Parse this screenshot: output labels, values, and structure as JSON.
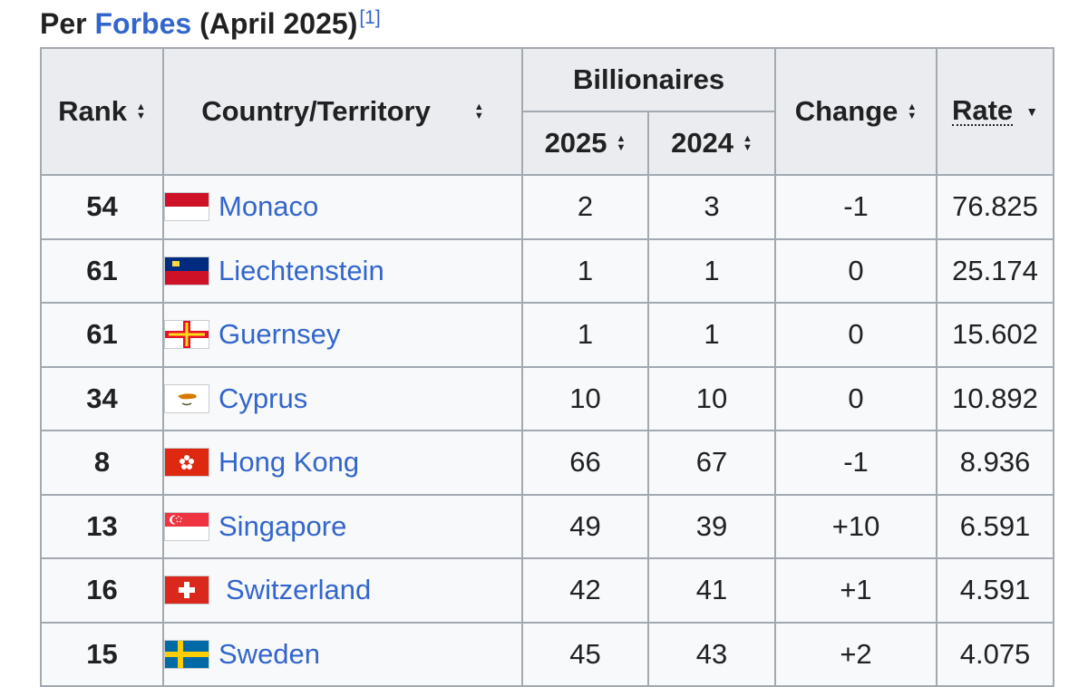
{
  "caption": {
    "prefix": "Per ",
    "source": "Forbes",
    "suffix": " (April 2025)",
    "ref": "[1]"
  },
  "headers": {
    "rank": "Rank",
    "country": "Country/Territory",
    "billionaires": "Billionaires",
    "y2025": "2025",
    "y2024": "2024",
    "change": "Change",
    "rate": "Rate"
  },
  "icons": {
    "sort_both": "sort-updown-icon",
    "sort_desc": "sort-down-icon"
  },
  "rows": [
    {
      "rank": "54",
      "country": "Monaco",
      "flag": "monaco-flag-icon",
      "b2025": "2",
      "b2024": "3",
      "change": "-1",
      "rate": "76.825"
    },
    {
      "rank": "61",
      "country": "Liechtenstein",
      "flag": "liechtenstein-flag-icon",
      "b2025": "1",
      "b2024": "1",
      "change": "0",
      "rate": "25.174"
    },
    {
      "rank": "61",
      "country": "Guernsey",
      "flag": "guernsey-flag-icon",
      "b2025": "1",
      "b2024": "1",
      "change": "0",
      "rate": "15.602"
    },
    {
      "rank": "34",
      "country": "Cyprus",
      "flag": "cyprus-flag-icon",
      "b2025": "10",
      "b2024": "10",
      "change": "0",
      "rate": "10.892"
    },
    {
      "rank": "8",
      "country": "Hong Kong",
      "flag": "hong-kong-flag-icon",
      "b2025": "66",
      "b2024": "67",
      "change": "-1",
      "rate": "8.936"
    },
    {
      "rank": "13",
      "country": "Singapore",
      "flag": "singapore-flag-icon",
      "b2025": "49",
      "b2024": "39",
      "change": "+10",
      "rate": "6.591"
    },
    {
      "rank": "16",
      "country": "Switzerland",
      "flag": "switzerland-flag-icon",
      "b2025": "42",
      "b2024": "41",
      "change": "+1",
      "rate": "4.591"
    },
    {
      "rank": "15",
      "country": "Sweden",
      "flag": "sweden-flag-icon",
      "b2025": "45",
      "b2024": "43",
      "change": "+2",
      "rate": "4.075"
    }
  ]
}
